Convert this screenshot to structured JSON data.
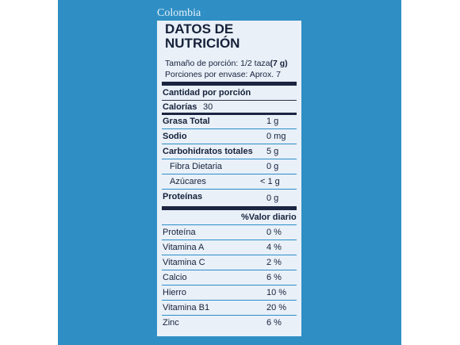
{
  "country": "Colombia",
  "title_line1": "DATOS DE",
  "title_line2": "NUTRICIÓN",
  "serving_size_label": "Tamaño de porción: 1/2 taza",
  "serving_size_amount": "(7 g)",
  "servings_per_container": "Porciones por envase: Aprox. 7",
  "amount_per_serving": "Cantidad por porción",
  "calories_label": "Calorías",
  "calories_value": "30",
  "nutrients": [
    {
      "name": "Grasa Total",
      "value": "1 g"
    },
    {
      "name": "Sodio",
      "value": "0 mg"
    },
    {
      "name": "Carbohidratos totales",
      "value": "5 g"
    },
    {
      "name": "Fibra Dietaria",
      "value": "0 g"
    },
    {
      "name": "Azúcares",
      "value": "< 1 g"
    },
    {
      "name": "Proteínas",
      "value": "0 g"
    }
  ],
  "daily_value_header": "%Valor diario",
  "vitamins": [
    {
      "name": "Proteína",
      "value": "0 %"
    },
    {
      "name": "Vitamina A",
      "value": "4 %"
    },
    {
      "name": "Vitamina C",
      "value": "2 %"
    },
    {
      "name": "Calcio",
      "value": "6 %"
    },
    {
      "name": "Hierro",
      "value": "10 %"
    },
    {
      "name": "Vitamina B1",
      "value": "20 %"
    },
    {
      "name": "Zinc",
      "value": "6 %"
    }
  ],
  "colors": {
    "background": "#2f8fc4",
    "label": "#e9f0f8",
    "text": "#16213a",
    "rule": "#2a8ec8"
  }
}
